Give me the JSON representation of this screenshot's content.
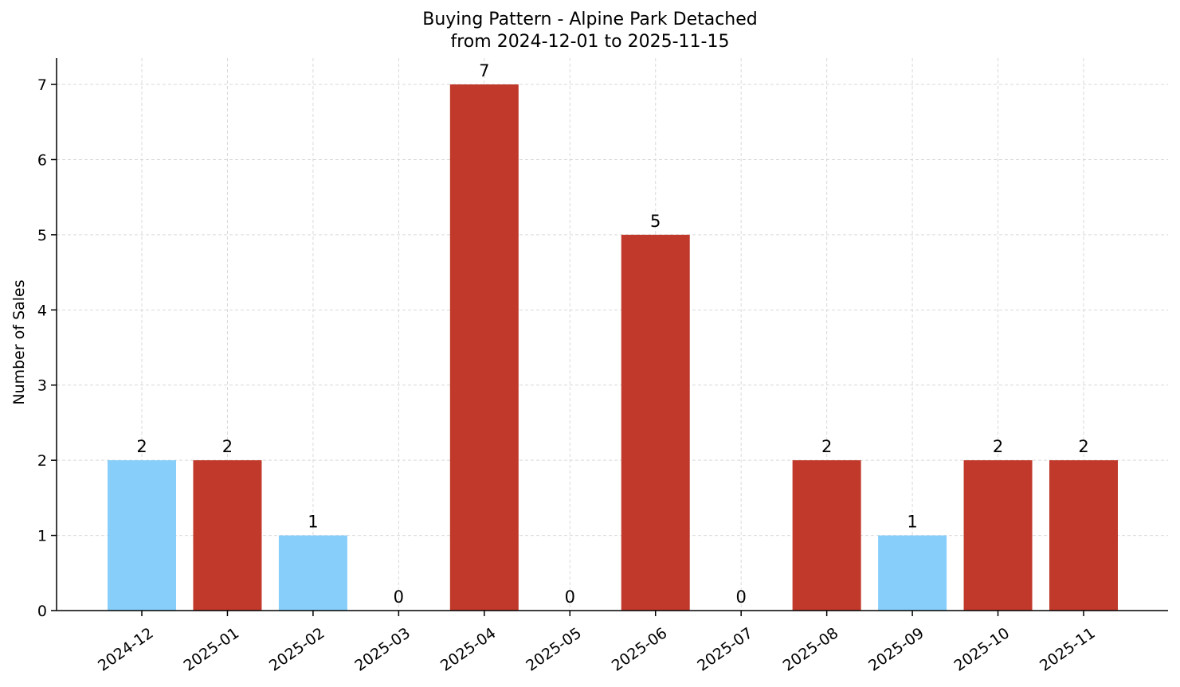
{
  "chart_data": {
    "type": "bar",
    "title": "Buying Pattern - Alpine Park Detached",
    "subtitle": "from 2024-12-01 to 2025-11-15",
    "xlabel": "",
    "ylabel": "Number of Sales",
    "categories": [
      "2024-12",
      "2025-01",
      "2025-02",
      "2025-03",
      "2025-04",
      "2025-05",
      "2025-06",
      "2025-07",
      "2025-08",
      "2025-09",
      "2025-10",
      "2025-11"
    ],
    "values": [
      2,
      2,
      1,
      0,
      7,
      0,
      5,
      0,
      2,
      1,
      2,
      2
    ],
    "bar_colors": [
      "#87CEFA",
      "#C0392B",
      "#87CEFA",
      "#C0392B",
      "#C0392B",
      "#C0392B",
      "#C0392B",
      "#C0392B",
      "#C0392B",
      "#87CEFA",
      "#C0392B",
      "#C0392B"
    ],
    "ylim": [
      0,
      7.35
    ],
    "yticks": [
      0,
      1,
      2,
      3,
      4,
      5,
      6,
      7
    ],
    "grid": true,
    "data_labels": true
  }
}
